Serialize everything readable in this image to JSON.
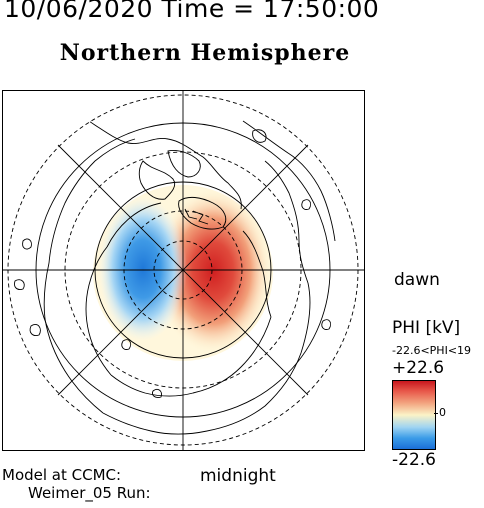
{
  "header": {
    "datetime": "10/06/2020 Time = 17:50:00",
    "hemisphere": "Northern Hemisphere"
  },
  "map": {
    "orientation_labels": {
      "right": "dawn",
      "bottom": "midnight"
    },
    "latitude_circles": "dashed and solid circles around the pole",
    "meridians": "every 45 degrees",
    "potential_pattern": {
      "dawn_cell": {
        "sign": "positive",
        "color": "#d42a24"
      },
      "dusk_cell": {
        "sign": "negative",
        "color": "#2a84d8"
      }
    }
  },
  "colorbar": {
    "title": "PHI [kV]",
    "range_text": "-22.6<PHI<19",
    "max_label": "+22.6",
    "zero_label": "0",
    "min_label": "-22.6",
    "colors": [
      "#c8171e",
      "#f2a27e",
      "#fbf3c7",
      "#9fd4f2",
      "#1a6fd8"
    ]
  },
  "footer": {
    "line1": "Model at CCMC:",
    "line2": "Weimer_05 Run:"
  }
}
